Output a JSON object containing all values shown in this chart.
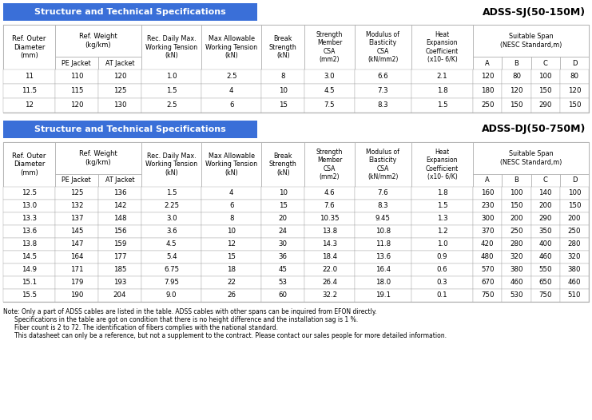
{
  "title1": "Structure and Technical Specifications",
  "title1_right": "ADSS-SJ(50-150M)",
  "title2": "Structure and Technical Specifications",
  "title2_right": "ADSS-DJ(50-750M)",
  "header_bg": "#3a6fd8",
  "header_text_color": "white",
  "border_color": "#aaaaaa",
  "table1_data": [
    [
      "11",
      "110",
      "120",
      "1.0",
      "2.5",
      "8",
      "3.0",
      "6.6",
      "2.1",
      "120",
      "80",
      "100",
      "80"
    ],
    [
      "11.5",
      "115",
      "125",
      "1.5",
      "4",
      "10",
      "4.5",
      "7.3",
      "1.8",
      "180",
      "120",
      "150",
      "120"
    ],
    [
      "12",
      "120",
      "130",
      "2.5",
      "6",
      "15",
      "7.5",
      "8.3",
      "1.5",
      "250",
      "150",
      "290",
      "150"
    ]
  ],
  "table2_data": [
    [
      "12.5",
      "125",
      "136",
      "1.5",
      "4",
      "10",
      "4.6",
      "7.6",
      "1.8",
      "160",
      "100",
      "140",
      "100"
    ],
    [
      "13.0",
      "132",
      "142",
      "2.25",
      "6",
      "15",
      "7.6",
      "8.3",
      "1.5",
      "230",
      "150",
      "200",
      "150"
    ],
    [
      "13.3",
      "137",
      "148",
      "3.0",
      "8",
      "20",
      "10.35",
      "9.45",
      "1.3",
      "300",
      "200",
      "290",
      "200"
    ],
    [
      "13.6",
      "145",
      "156",
      "3.6",
      "10",
      "24",
      "13.8",
      "10.8",
      "1.2",
      "370",
      "250",
      "350",
      "250"
    ],
    [
      "13.8",
      "147",
      "159",
      "4.5",
      "12",
      "30",
      "14.3",
      "11.8",
      "1.0",
      "420",
      "280",
      "400",
      "280"
    ],
    [
      "14.5",
      "164",
      "177",
      "5.4",
      "15",
      "36",
      "18.4",
      "13.6",
      "0.9",
      "480",
      "320",
      "460",
      "320"
    ],
    [
      "14.9",
      "171",
      "185",
      "6.75",
      "18",
      "45",
      "22.0",
      "16.4",
      "0.6",
      "570",
      "380",
      "550",
      "380"
    ],
    [
      "15.1",
      "179",
      "193",
      "7.95",
      "22",
      "53",
      "26.4",
      "18.0",
      "0.3",
      "670",
      "460",
      "650",
      "460"
    ],
    [
      "15.5",
      "190",
      "204",
      "9.0",
      "26",
      "60",
      "32.2",
      "19.1",
      "0.1",
      "750",
      "530",
      "750",
      "510"
    ]
  ],
  "note_lines": [
    "Note: Only a part of ADSS cables are listed in the table. ADSS cables with other spans can be inquired from EFON directly.",
    "        Specifications in the table are got on condition that there is no height difference and the installation sag is 1 %.",
    "        Fiber count is 2 to 72. The identification of fibers complies with the national standard.",
    "        This datasheet can only be a reference, but not a supplement to the contract. Please contact our sales people for more detailed information."
  ],
  "col_widths_rel": [
    5.0,
    4.2,
    4.2,
    5.8,
    5.8,
    4.2,
    4.8,
    5.5,
    6.0,
    2.8,
    2.8,
    2.8,
    2.8
  ]
}
